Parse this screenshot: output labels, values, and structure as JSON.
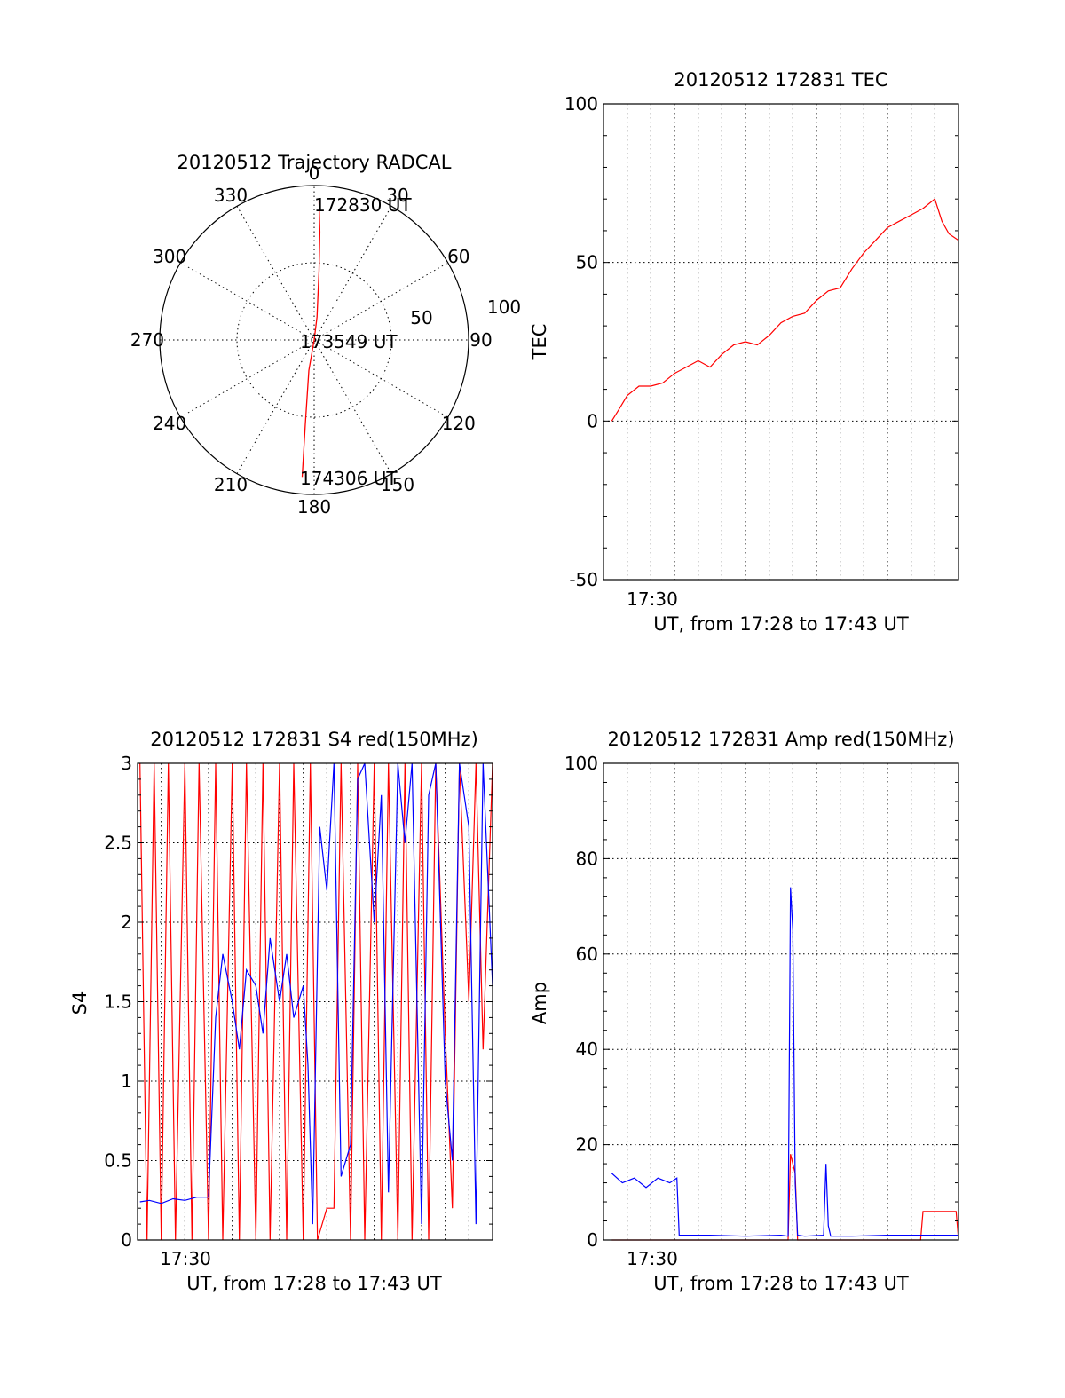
{
  "colors": {
    "red": "#ff0000",
    "blue": "#0000ff",
    "axis": "#000000",
    "background": "#ffffff"
  },
  "panels": {
    "polar": {
      "title": "20120512 Trajectory RADCAL",
      "angle_labels": [
        "0",
        "30",
        "60",
        "90",
        "120",
        "150",
        "180",
        "210",
        "240",
        "270",
        "300",
        "330"
      ],
      "radial_labels": [
        "50",
        "100"
      ],
      "time_labels": [
        "172830 UT",
        "173549 UT",
        "174306 UT"
      ]
    },
    "tec": {
      "title": "20120512 172831 TEC",
      "ylabel": "TEC",
      "xtick": "17:30",
      "xlabel": "UT, from 17:28 to 17:43 UT"
    },
    "s4": {
      "title": "20120512 172831 S4 red(150MHz)",
      "ylabel": "S4",
      "xtick": "17:30",
      "xlabel": "UT, from 17:28 to 17:43 UT"
    },
    "amp": {
      "title": "20120512 172831 Amp red(150MHz)",
      "ylabel": "Amp",
      "xtick": "17:30",
      "xlabel": "UT, from 17:28 to 17:43 UT"
    }
  },
  "chart_data": [
    {
      "type": "scatter",
      "subtype": "polar",
      "title": "20120512 Trajectory RADCAL",
      "theta_ticks": [
        0,
        30,
        60,
        90,
        120,
        150,
        180,
        210,
        240,
        270,
        300,
        330
      ],
      "r_ticks": [
        50,
        100
      ],
      "rlim": [
        0,
        100
      ],
      "grid": true,
      "series": [
        {
          "color": "#ff0000",
          "points": [
            {
              "theta": 2,
              "r": 90
            },
            {
              "theta": 3,
              "r": 70
            },
            {
              "theta": 4,
              "r": 45
            },
            {
              "theta": 7,
              "r": 15
            },
            {
              "theta": 90,
              "r": 0
            },
            {
              "theta": 190,
              "r": 20
            },
            {
              "theta": 186,
              "r": 55
            },
            {
              "theta": 185,
              "r": 89
            }
          ]
        }
      ],
      "annotations": [
        {
          "text": "172830 UT",
          "theta": 0,
          "r": 90
        },
        {
          "text": "173549 UT",
          "theta": 0,
          "r": 0
        },
        {
          "text": "174306 UT",
          "theta": 180,
          "r": 89
        }
      ]
    },
    {
      "type": "line",
      "title": "20120512 172831 TEC",
      "xlabel": "UT, from 17:28 to 17:43 UT",
      "ylabel": "TEC",
      "xlim": [
        0,
        15
      ],
      "ylim": [
        -50,
        100
      ],
      "yticks": [
        -50,
        0,
        50,
        100
      ],
      "xticks": [
        {
          "value": 1.0,
          "label": "17:30"
        }
      ],
      "grid": true,
      "series": [
        {
          "color": "#ff0000",
          "x": [
            0.35,
            0.6,
            1.0,
            1.5,
            2.0,
            2.5,
            3.0,
            3.5,
            4.0,
            4.5,
            5.0,
            5.5,
            6.0,
            6.5,
            7.0,
            7.5,
            8.0,
            8.5,
            9.0,
            9.5,
            10.0,
            10.5,
            11.0,
            11.5,
            12.0,
            12.5,
            13.0,
            13.5,
            14.0,
            14.3,
            14.6,
            15.0
          ],
          "y": [
            0,
            3,
            8,
            11,
            11,
            12,
            15,
            17,
            19,
            17,
            21,
            24,
            25,
            24,
            27,
            31,
            33,
            34,
            38,
            41,
            42,
            48,
            53,
            57,
            61,
            63,
            65,
            67,
            70,
            63,
            59,
            57
          ]
        }
      ]
    },
    {
      "type": "line",
      "title": "20120512 172831 S4 red(150MHz)",
      "xlabel": "UT, from 17:28 to 17:43 UT",
      "ylabel": "S4",
      "xlim": [
        0,
        15
      ],
      "ylim": [
        0,
        3
      ],
      "yticks": [
        0,
        0.5,
        1,
        1.5,
        2,
        2.5,
        3
      ],
      "xticks": [
        {
          "value": 1.0,
          "label": "17:30"
        }
      ],
      "grid": true,
      "series": [
        {
          "color": "#ff0000",
          "x": [
            0.1,
            0.4,
            0.7,
            1.0,
            1.3,
            1.6,
            2.0,
            2.3,
            2.6,
            3.0,
            3.3,
            3.6,
            4.0,
            4.3,
            4.6,
            5.0,
            5.3,
            5.6,
            6.0,
            6.3,
            6.6,
            7.0,
            7.3,
            7.6,
            8.0,
            8.3,
            8.6,
            9.0,
            9.3,
            9.6,
            10.0,
            10.3,
            10.6,
            11.0,
            11.3,
            11.6,
            12.0,
            12.3,
            12.6,
            13.0,
            13.3,
            13.6,
            14.0,
            14.3,
            14.6,
            15.0
          ],
          "y": [
            3,
            0,
            3,
            0,
            3,
            0,
            3,
            0,
            3,
            0,
            3,
            0,
            3,
            0,
            3,
            0,
            3,
            0,
            3,
            0,
            3,
            0,
            3,
            0,
            0.2,
            0.2,
            3,
            0,
            3,
            0,
            3,
            0,
            3,
            0,
            3,
            0,
            3,
            0,
            3,
            1.3,
            0.2,
            3,
            1.5,
            3,
            1.2,
            3
          ]
        },
        {
          "color": "#0000ff",
          "x": [
            0.1,
            0.5,
            1.0,
            1.5,
            2.0,
            2.5,
            3.0,
            3.3,
            3.6,
            4.0,
            4.3,
            4.6,
            5.0,
            5.3,
            5.6,
            6.0,
            6.3,
            6.6,
            7.0,
            7.2,
            7.4,
            7.7,
            8.0,
            8.3,
            8.6,
            9.0,
            9.3,
            9.6,
            10.0,
            10.3,
            10.6,
            11.0,
            11.3,
            11.6,
            12.0,
            12.3,
            12.6,
            13.0,
            13.3,
            13.6,
            14.0,
            14.3,
            14.6,
            15.0
          ],
          "y": [
            0.24,
            0.25,
            0.23,
            0.26,
            0.25,
            0.27,
            0.27,
            1.4,
            1.8,
            1.5,
            1.2,
            1.7,
            1.6,
            1.3,
            1.9,
            1.5,
            1.8,
            1.4,
            1.6,
            1.1,
            0.1,
            2.6,
            2.2,
            3.0,
            0.4,
            0.6,
            2.9,
            3.0,
            2.0,
            2.8,
            0.3,
            3.0,
            2.5,
            3.0,
            0.1,
            2.8,
            3.0,
            1.0,
            0.5,
            3.0,
            2.6,
            0.1,
            3.0,
            1.6
          ]
        }
      ]
    },
    {
      "type": "line",
      "title": "20120512 172831 Amp red(150MHz)",
      "xlabel": "UT, from 17:28 to 17:43 UT",
      "ylabel": "Amp",
      "xlim": [
        0,
        15
      ],
      "ylim": [
        0,
        100
      ],
      "yticks": [
        0,
        20,
        40,
        60,
        80,
        100
      ],
      "xticks": [
        {
          "value": 1.0,
          "label": "17:30"
        }
      ],
      "grid": true,
      "series": [
        {
          "color": "#ff0000",
          "x": [
            0.35,
            3.1,
            3.2,
            7.8,
            7.9,
            8.1,
            8.2,
            13.4,
            13.5,
            14.9,
            15.0
          ],
          "y": [
            0,
            0,
            0,
            0,
            18,
            14,
            0,
            0,
            6,
            6,
            0
          ]
        },
        {
          "color": "#0000ff",
          "x": [
            0.35,
            0.8,
            1.3,
            1.8,
            2.3,
            2.8,
            3.1,
            3.2,
            4.5,
            6.0,
            7.5,
            7.8,
            7.9,
            8.0,
            8.1,
            8.2,
            8.5,
            9.3,
            9.4,
            9.5,
            9.6,
            10.5,
            12.0,
            13.5,
            15.0
          ],
          "y": [
            14,
            12,
            13,
            11,
            13,
            12,
            13,
            1,
            1,
            0.8,
            1,
            0.8,
            74,
            65,
            12,
            1,
            0.8,
            1,
            16,
            3,
            0.8,
            0.8,
            1,
            1,
            1
          ]
        }
      ]
    }
  ]
}
